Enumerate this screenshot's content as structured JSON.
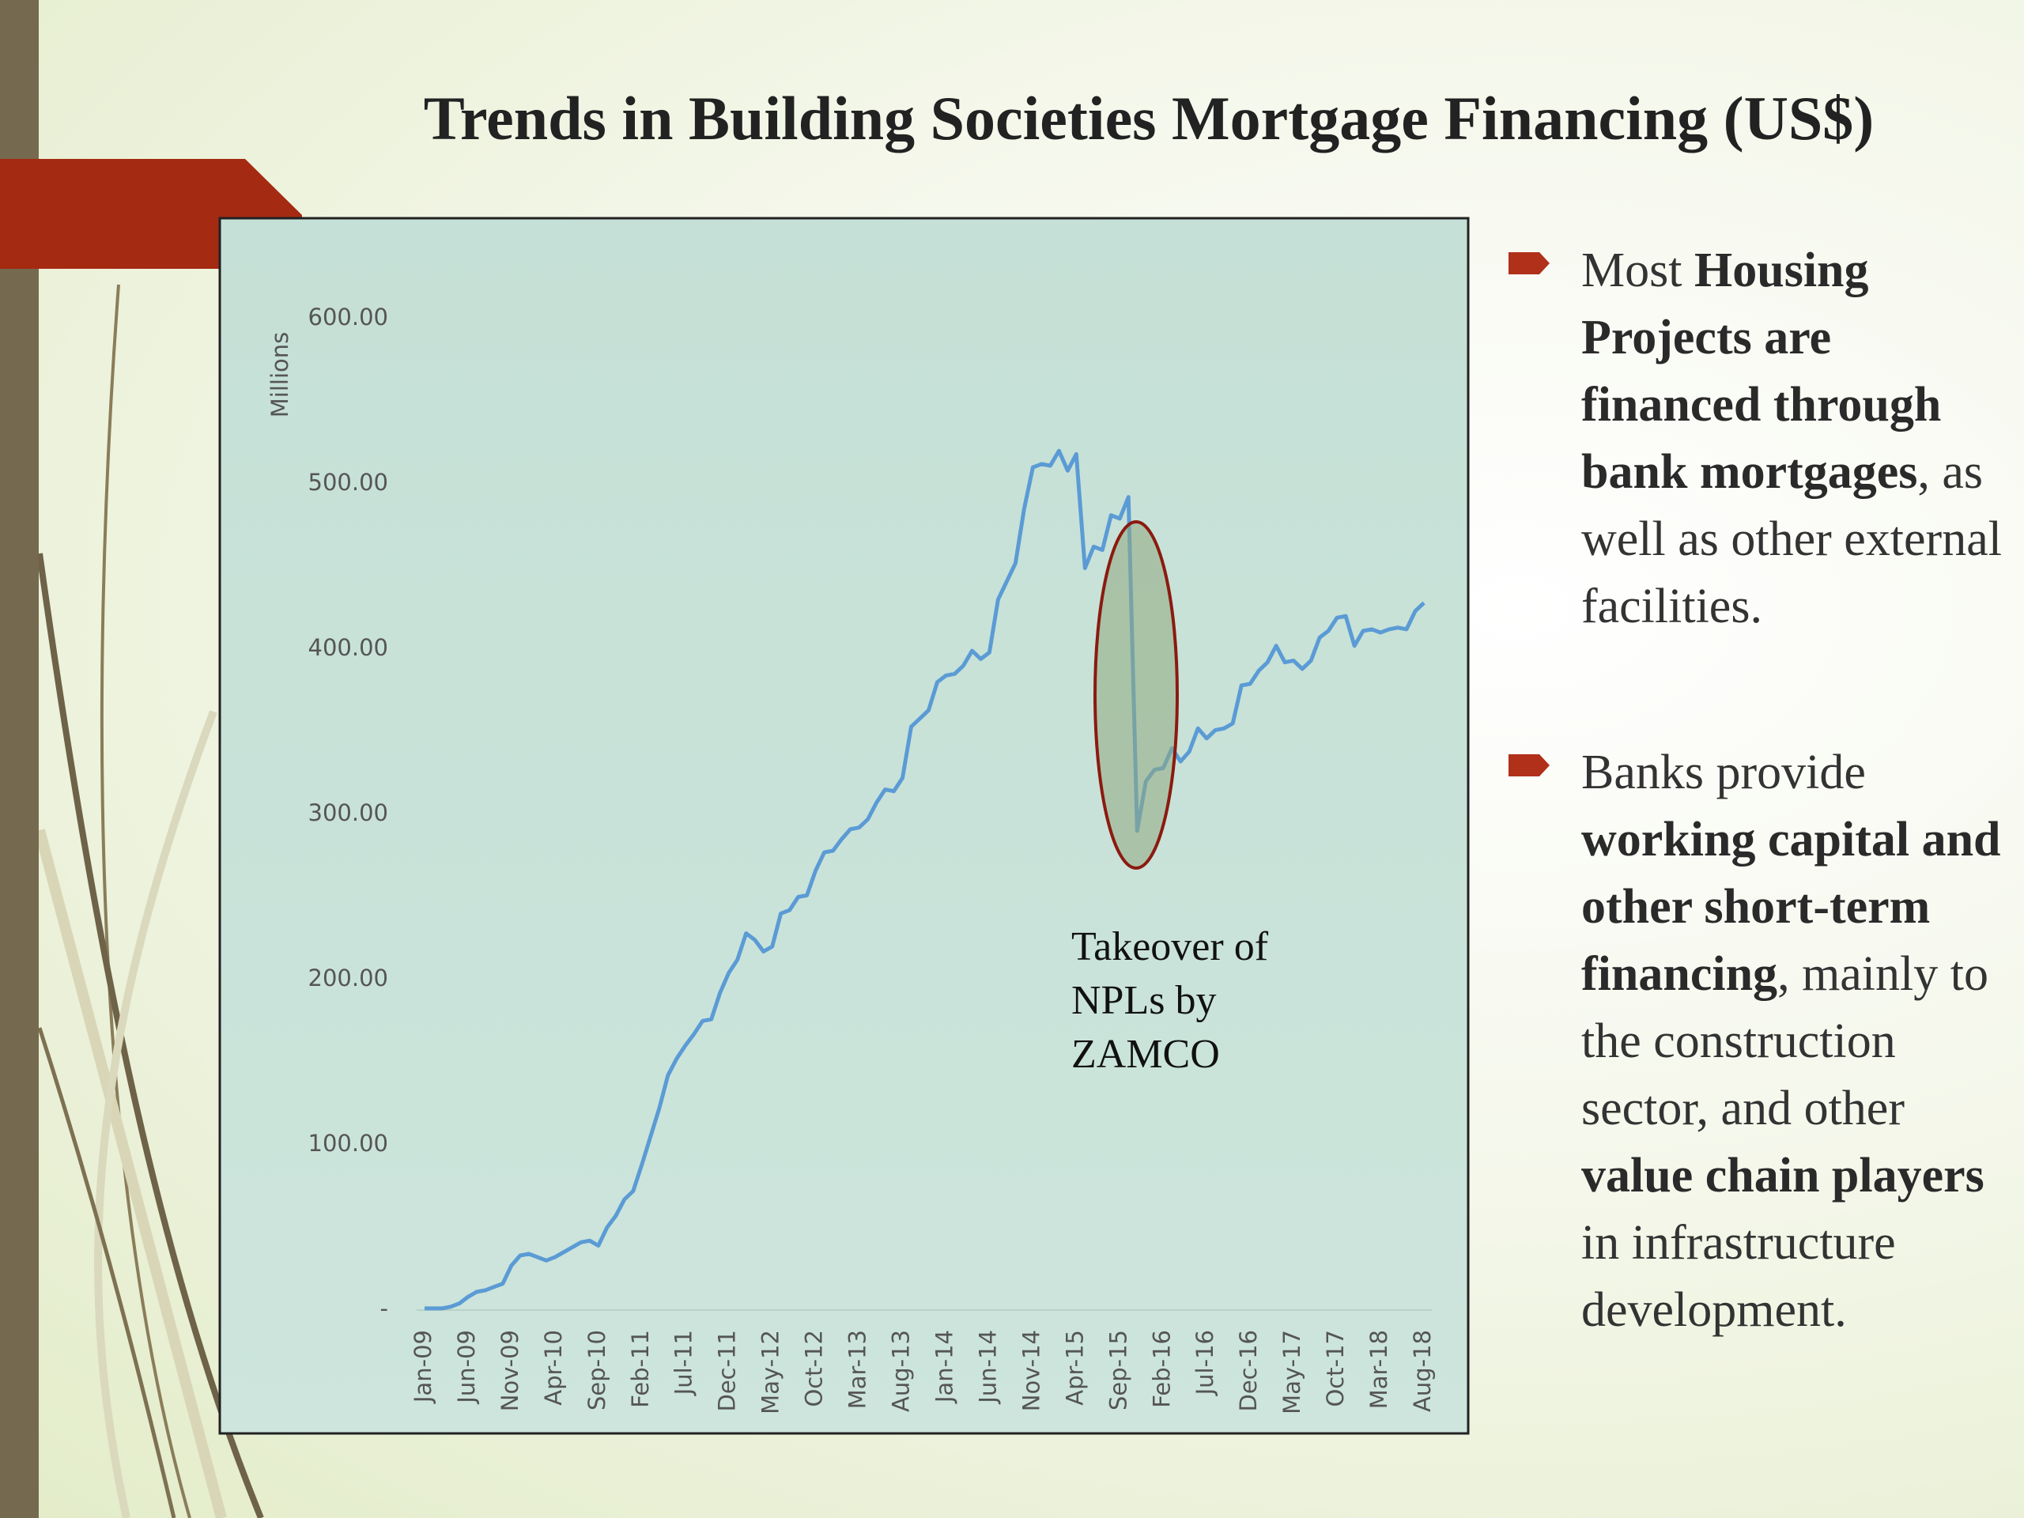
{
  "chart_data": {
    "type": "line",
    "title": "Trends in Building Societies Mortgage Financing (US$)",
    "y_label": "Millions",
    "annotation": [
      "Takeover of",
      "NPLs by",
      "ZAMCO"
    ],
    "categories": [
      "Jan-09",
      null,
      null,
      null,
      null,
      "Jun-09",
      null,
      null,
      null,
      null,
      "Nov-09",
      null,
      null,
      null,
      null,
      "Apr-10",
      null,
      null,
      null,
      null,
      "Sep-10",
      null,
      null,
      null,
      null,
      "Feb-11",
      null,
      null,
      null,
      null,
      "Jul-11",
      null,
      null,
      null,
      null,
      "Dec-11",
      null,
      null,
      null,
      null,
      "May-12",
      null,
      null,
      null,
      null,
      "Oct-12",
      null,
      null,
      null,
      null,
      "Mar-13",
      null,
      null,
      null,
      null,
      "Aug-13",
      null,
      null,
      null,
      null,
      "Jan-14",
      null,
      null,
      null,
      null,
      "Jun-14",
      null,
      null,
      null,
      null,
      "Nov-14",
      null,
      null,
      null,
      null,
      "Apr-15",
      null,
      null,
      null,
      null,
      "Sep-15",
      null,
      null,
      null,
      null,
      "Feb-16",
      null,
      null,
      null,
      null,
      "Jul-16",
      null,
      null,
      null,
      null,
      "Dec-16",
      null,
      null,
      null,
      null,
      "May-17",
      null,
      null,
      null,
      null,
      "Oct-17",
      null,
      null,
      null,
      null,
      "Mar-18",
      null,
      null,
      null,
      null,
      "Aug-18"
    ],
    "series": [
      {
        "color": "#5b9bd5",
        "values": [
          1,
          1,
          1,
          2,
          4,
          8,
          11,
          12,
          14,
          16,
          27,
          33,
          34,
          32,
          30,
          32,
          35,
          38,
          41,
          42,
          39,
          50,
          57,
          67,
          72,
          88,
          105,
          122,
          142,
          152,
          160,
          167,
          175,
          176,
          192,
          204,
          212,
          228,
          224,
          217,
          220,
          240,
          242,
          250,
          251,
          266,
          277,
          278,
          285,
          291,
          292,
          297,
          307,
          315,
          314,
          322,
          353,
          358,
          363,
          380,
          384,
          385,
          390,
          399,
          394,
          398,
          430,
          441,
          452,
          485,
          510,
          512,
          511,
          520,
          508,
          518,
          449,
          462,
          460,
          481,
          479,
          492,
          290,
          320,
          327,
          328,
          340,
          332,
          338,
          352,
          346,
          351,
          352,
          355,
          378,
          379,
          387,
          392,
          402,
          392,
          393,
          388,
          393,
          407,
          411,
          419,
          420,
          402,
          411,
          412,
          410,
          412,
          413,
          412,
          423,
          428
        ]
      }
    ],
    "ylim": [
      0,
      600
    ],
    "yticks": [
      {
        "value": 0,
        "label": "-"
      },
      {
        "value": 100,
        "label": "100.00"
      },
      {
        "value": 200,
        "label": "200.00"
      },
      {
        "value": 300,
        "label": "300.00"
      },
      {
        "value": 400,
        "label": "400.00"
      },
      {
        "value": 500,
        "label": "500.00"
      },
      {
        "value": 600,
        "label": "600.00"
      }
    ],
    "grid": false
  },
  "bullets": [
    [
      {
        "text": "Most ",
        "bold": false
      },
      {
        "text": "Housing Projects are financed through bank mortgages",
        "bold": true
      },
      {
        "text": ", as well as other external facilities.",
        "bold": false
      }
    ],
    [
      {
        "text": "Banks provide ",
        "bold": false
      },
      {
        "text": "working capital and other short-term financing",
        "bold": true
      },
      {
        "text": ", mainly to the construction sector, and other ",
        "bold": false
      },
      {
        "text": "value chain players",
        "bold": true
      },
      {
        "text": " in infrastructure development.",
        "bold": false
      }
    ]
  ]
}
